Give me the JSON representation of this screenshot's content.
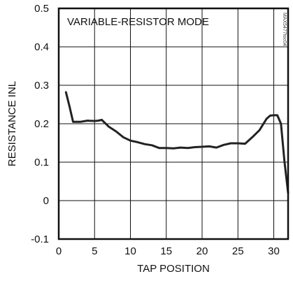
{
  "chart_data": {
    "type": "line",
    "title": "",
    "annotation": "VARIABLE-RESISTOR MODE",
    "side_code": "MAX5477toc04",
    "xlabel": "TAP POSITION",
    "ylabel": "RESISTANCE INL",
    "xlim": [
      0,
      32
    ],
    "ylim": [
      -0.1,
      0.5
    ],
    "x_ticks": [
      0,
      5,
      10,
      15,
      20,
      25,
      30
    ],
    "y_ticks": [
      -0.1,
      0,
      0.1,
      0.2,
      0.3,
      0.4,
      0.5
    ],
    "x_tick_labels": [
      "0",
      "5",
      "10",
      "15",
      "20",
      "25",
      "30"
    ],
    "y_tick_labels": [
      "-0.1",
      "0",
      "0.1",
      "0.2",
      "0.3",
      "0.4",
      "0.5"
    ],
    "grid": true,
    "line_color": "#222222",
    "grid_color": "#111111",
    "series": [
      {
        "x": [
          1,
          1.5,
          2,
          3,
          4,
          5,
          5.5,
          6,
          7,
          8,
          9,
          10,
          11,
          12,
          13,
          14,
          15,
          16,
          17,
          18,
          19,
          20,
          21,
          22,
          23,
          24,
          25,
          26,
          27,
          28,
          29,
          29.5,
          30,
          30.5,
          31,
          31.5,
          32
        ],
        "y": [
          0.282,
          0.245,
          0.205,
          0.205,
          0.208,
          0.207,
          0.208,
          0.21,
          0.192,
          0.18,
          0.165,
          0.156,
          0.152,
          0.147,
          0.144,
          0.137,
          0.137,
          0.136,
          0.138,
          0.137,
          0.139,
          0.14,
          0.141,
          0.138,
          0.145,
          0.149,
          0.149,
          0.148,
          0.165,
          0.183,
          0.213,
          0.221,
          0.222,
          0.222,
          0.2,
          0.1,
          0.02
        ]
      }
    ]
  }
}
